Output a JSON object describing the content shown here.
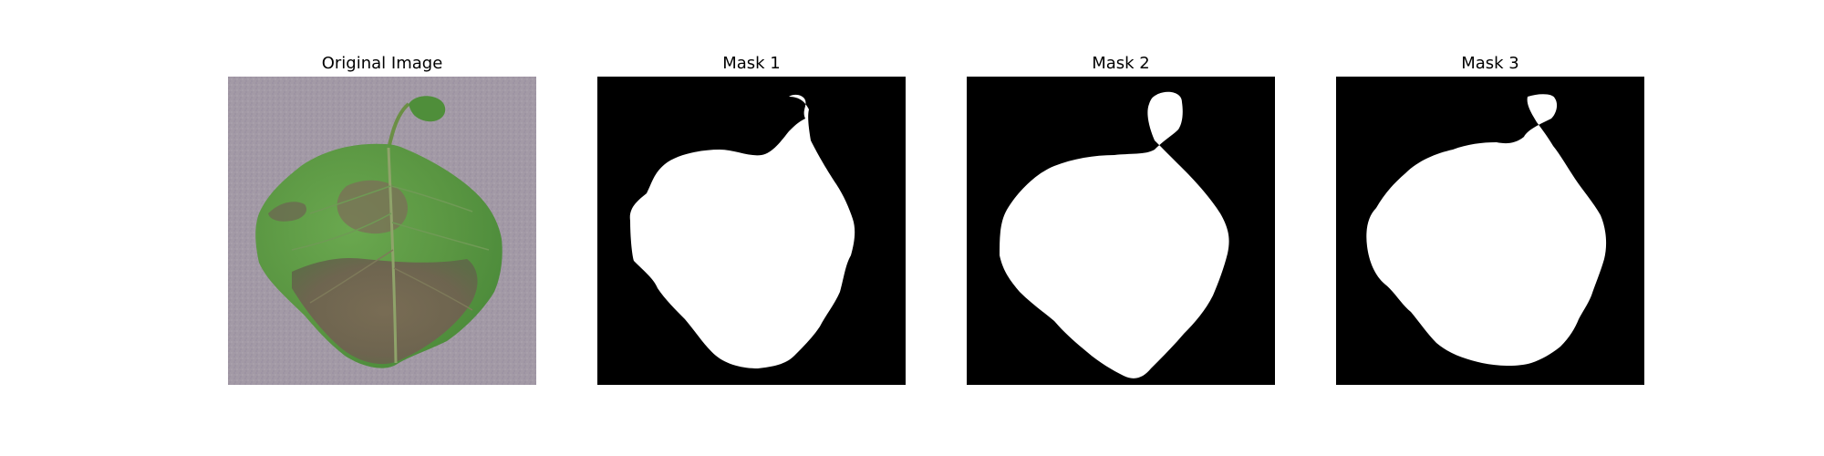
{
  "figure": {
    "panels": [
      {
        "title": "Original Image"
      },
      {
        "title": "Mask 1"
      },
      {
        "title": "Mask 2"
      },
      {
        "title": "Mask 3"
      }
    ]
  },
  "colors": {
    "background_cloth": "#a39aa6",
    "leaf_green": "#5f9a46",
    "leaf_lesion": "#7f6a52",
    "mask_background": "#000000",
    "mask_foreground": "#ffffff"
  }
}
